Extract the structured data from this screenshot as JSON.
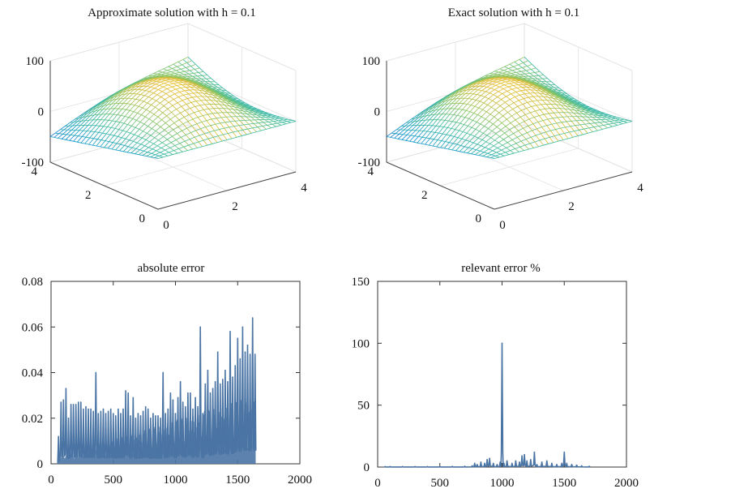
{
  "chart_data": [
    {
      "type": "surface",
      "title": "Approximate solution with h = 0.1",
      "xlabel": "",
      "ylabel": "",
      "zlabel": "",
      "x_ticks": [
        "0",
        "2",
        "4"
      ],
      "y_ticks": [
        "0",
        "2",
        "4"
      ],
      "z_ticks": [
        "-100",
        "0",
        "100"
      ],
      "xlim": [
        0,
        4
      ],
      "ylim": [
        0,
        4
      ],
      "zlim": [
        -100,
        100
      ],
      "colormap": "parula",
      "grid": true
    },
    {
      "type": "surface",
      "title": "Exact solution with h = 0.1",
      "xlabel": "",
      "ylabel": "",
      "zlabel": "",
      "x_ticks": [
        "0",
        "2",
        "4"
      ],
      "y_ticks": [
        "0",
        "2",
        "4"
      ],
      "z_ticks": [
        "-100",
        "0",
        "100"
      ],
      "xlim": [
        0,
        4
      ],
      "ylim": [
        0,
        4
      ],
      "zlim": [
        -100,
        100
      ],
      "colormap": "parula",
      "grid": true
    },
    {
      "type": "line",
      "title": "absolute error",
      "xlabel": "",
      "ylabel": "",
      "xlim": [
        0,
        2000
      ],
      "ylim": [
        0,
        0.08
      ],
      "x_ticks": [
        "0",
        "500",
        "1000",
        "1500",
        "2000"
      ],
      "y_ticks": [
        "0",
        "0.02",
        "0.04",
        "0.06",
        "0.08"
      ],
      "color": "#4a74a4",
      "series": [
        {
          "x": [
            60,
            80,
            100,
            120,
            140,
            160,
            180,
            200,
            220,
            240,
            260,
            280,
            300,
            320,
            340,
            360,
            380,
            400,
            420,
            440,
            460,
            480,
            500,
            520,
            540,
            560,
            580,
            600,
            620,
            640,
            660,
            680,
            700,
            720,
            740,
            760,
            780,
            800,
            820,
            840,
            860,
            880,
            900,
            920,
            940,
            960,
            980,
            1000,
            1020,
            1040,
            1060,
            1080,
            1100,
            1120,
            1140,
            1160,
            1180,
            1200,
            1220,
            1240,
            1260,
            1280,
            1300,
            1320,
            1340,
            1360,
            1380,
            1400,
            1420,
            1440,
            1460,
            1480,
            1500,
            1520,
            1540,
            1560,
            1580,
            1600,
            1620,
            1640
          ],
          "values": [
            0.012,
            0.027,
            0.028,
            0.033,
            0.02,
            0.026,
            0.026,
            0.026,
            0.027,
            0.027,
            0.024,
            0.025,
            0.024,
            0.024,
            0.023,
            0.04,
            0.022,
            0.023,
            0.024,
            0.022,
            0.023,
            0.024,
            0.022,
            0.021,
            0.024,
            0.022,
            0.024,
            0.032,
            0.031,
            0.021,
            0.029,
            0.02,
            0.022,
            0.021,
            0.023,
            0.025,
            0.024,
            0.02,
            0.022,
            0.021,
            0.021,
            0.02,
            0.04,
            0.022,
            0.024,
            0.031,
            0.028,
            0.022,
            0.029,
            0.036,
            0.027,
            0.025,
            0.031,
            0.031,
            0.024,
            0.029,
            0.025,
            0.06,
            0.022,
            0.035,
            0.041,
            0.031,
            0.033,
            0.036,
            0.049,
            0.035,
            0.037,
            0.041,
            0.036,
            0.058,
            0.038,
            0.043,
            0.055,
            0.046,
            0.06,
            0.049,
            0.052,
            0.048,
            0.064,
            0.048
          ]
        }
      ]
    },
    {
      "type": "line",
      "title": "relevant error %",
      "xlabel": "",
      "ylabel": "",
      "xlim": [
        0,
        2000
      ],
      "ylim": [
        0,
        150
      ],
      "x_ticks": [
        "0",
        "500",
        "1000",
        "1500",
        "2000"
      ],
      "y_ticks": [
        "0",
        "50",
        "100",
        "150"
      ],
      "color": "#4a74a4",
      "series": [
        {
          "x": [
            60,
            100,
            200,
            300,
            400,
            500,
            600,
            700,
            760,
            780,
            800,
            830,
            860,
            880,
            900,
            930,
            960,
            985,
            1000,
            1015,
            1040,
            1080,
            1110,
            1140,
            1160,
            1180,
            1200,
            1230,
            1260,
            1280,
            1320,
            1360,
            1400,
            1440,
            1480,
            1500,
            1520,
            1560,
            1600,
            1640,
            1700
          ],
          "values": [
            0.4,
            0.4,
            0.4,
            0.4,
            0.4,
            0.4,
            0.5,
            0.6,
            1.0,
            3,
            2,
            4,
            3,
            6,
            7,
            3,
            2,
            4,
            100,
            3,
            5,
            3,
            5,
            4,
            9,
            10,
            5,
            6,
            12,
            2,
            4,
            5,
            3,
            2,
            3,
            12,
            3,
            2,
            1.5,
            1,
            0.6
          ]
        }
      ]
    }
  ]
}
